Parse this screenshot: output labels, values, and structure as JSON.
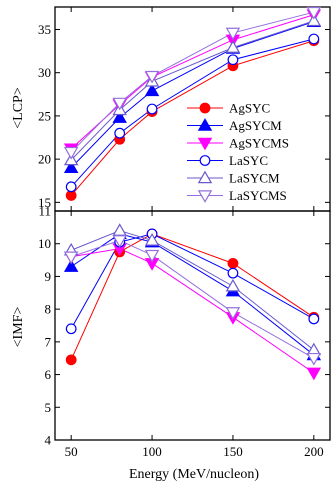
{
  "chart_data": [
    {
      "type": "line",
      "panel": "top",
      "ylabel": "<LCP>",
      "ylim": [
        14,
        37.6
      ],
      "yticks": [
        15,
        20,
        25,
        30,
        35
      ],
      "x": [
        50,
        80,
        100,
        150,
        200
      ],
      "series": [
        {
          "name": "AgSYC",
          "color": "#ff0000",
          "marker": "circle",
          "filled": true,
          "values": [
            15.8,
            22.3,
            25.5,
            30.8,
            33.7
          ]
        },
        {
          "name": "AgSYCM",
          "color": "#0000ff",
          "marker": "triangle-up",
          "filled": true,
          "values": [
            19.0,
            24.8,
            27.9,
            32.8,
            35.9
          ]
        },
        {
          "name": "AgSYCMS",
          "color": "#ff00ff",
          "marker": "triangle-down",
          "filled": true,
          "values": [
            21.2,
            26.3,
            29.5,
            33.8,
            36.7
          ]
        },
        {
          "name": "LaSYC",
          "color": "#0000ff",
          "marker": "circle",
          "filled": false,
          "values": [
            16.8,
            23.0,
            25.8,
            31.5,
            33.9
          ]
        },
        {
          "name": "LaSYCM",
          "color": "#6a5acd",
          "marker": "triangle-up",
          "filled": false,
          "values": [
            19.9,
            25.7,
            29.0,
            32.9,
            36.0
          ]
        },
        {
          "name": "LaSYCMS",
          "color": "#9370db",
          "marker": "triangle-down",
          "filled": false,
          "values": [
            20.8,
            26.5,
            29.6,
            34.6,
            37.0
          ]
        }
      ]
    },
    {
      "type": "line",
      "panel": "bottom",
      "xlabel": "Energy (MeV/nucleon)",
      "ylabel": "<IMF>",
      "xlim": [
        40,
        210
      ],
      "ylim": [
        4,
        11
      ],
      "xticks": [
        50,
        100,
        150,
        200
      ],
      "yticks": [
        4,
        5,
        6,
        7,
        8,
        9,
        10,
        11
      ],
      "x": [
        50,
        80,
        100,
        150,
        200
      ],
      "series": [
        {
          "name": "AgSYC",
          "color": "#ff0000",
          "marker": "circle",
          "filled": true,
          "values": [
            6.45,
            9.75,
            10.3,
            9.4,
            7.75
          ]
        },
        {
          "name": "AgSYCM",
          "color": "#0000ff",
          "marker": "triangle-up",
          "filled": true,
          "values": [
            9.3,
            10.3,
            10.05,
            8.55,
            6.6
          ]
        },
        {
          "name": "AgSYCMS",
          "color": "#ff00ff",
          "marker": "triangle-down",
          "filled": true,
          "values": [
            9.6,
            9.85,
            9.4,
            7.75,
            6.05
          ]
        },
        {
          "name": "LaSYC",
          "color": "#0000ff",
          "marker": "circle",
          "filled": false,
          "values": [
            7.4,
            10.05,
            10.3,
            9.1,
            7.7
          ]
        },
        {
          "name": "LaSYCM",
          "color": "#6a5acd",
          "marker": "triangle-up",
          "filled": false,
          "values": [
            9.8,
            10.4,
            10.1,
            8.7,
            6.75
          ]
        },
        {
          "name": "LaSYCMS",
          "color": "#9370db",
          "marker": "triangle-down",
          "filled": false,
          "values": [
            9.6,
            10.1,
            9.65,
            7.9,
            6.5
          ]
        }
      ]
    }
  ],
  "legend": {
    "placement": "right, in top panel",
    "entries": [
      "AgSYC",
      "AgSYCM",
      "AgSYCMS",
      "LaSYC",
      "LaSYCM",
      "LaSYCMS"
    ]
  }
}
